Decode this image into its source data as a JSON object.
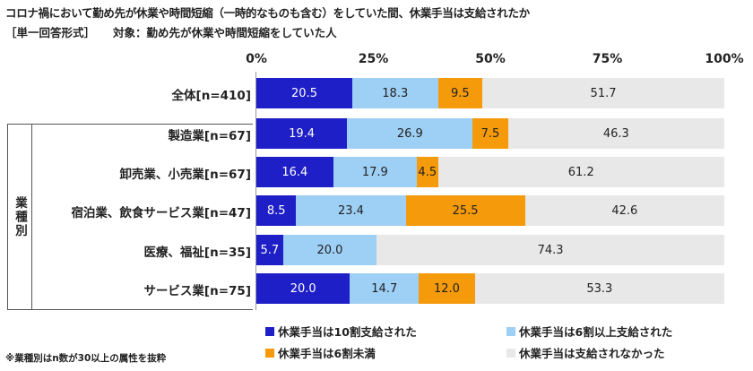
{
  "title": "コロナ禍において勤め先が休業や時間短縮（一時的なものも含む）をしていた間、休業手当は支給されたか",
  "subtitle": "［単一回答形式］",
  "target": "対象：勤め先が休業や時間短縮をしていた人",
  "group_label": "業種別",
  "note": "※業種別はn数が30以上の属性を抜粋",
  "colors": [
    "#1f1fc8",
    "#9ecff5",
    "#f59a0a",
    "#e8e8e8"
  ],
  "chart_data": {
    "type": "bar",
    "orientation": "horizontal",
    "stacked": true,
    "xlim": [
      0,
      100
    ],
    "ticks": [
      "0%",
      "25%",
      "50%",
      "75%",
      "100%"
    ],
    "categories": [
      "全体[n=410]",
      "製造業[n=67]",
      "卸売業、小売業[n=67]",
      "宿泊業、飲食サービス業[n=47]",
      "医療、福祉[n=35]",
      "サービス業[n=75]"
    ],
    "series": [
      {
        "name": "休業手当は10割支給された",
        "values": [
          20.5,
          19.4,
          16.4,
          8.5,
          5.7,
          20.0
        ]
      },
      {
        "name": "休業手当は6割以上支給された",
        "values": [
          18.3,
          26.9,
          17.9,
          23.4,
          20.0,
          14.7
        ]
      },
      {
        "name": "休業手当は6割未満",
        "values": [
          9.5,
          7.5,
          4.5,
          25.5,
          0,
          12.0
        ]
      },
      {
        "name": "休業手当は支給されなかった",
        "values": [
          51.7,
          46.3,
          61.2,
          42.6,
          74.3,
          53.3
        ]
      }
    ],
    "value_labels": [
      [
        "20.5",
        "18.3",
        "9.5",
        "51.7"
      ],
      [
        "19.4",
        "26.9",
        "7.5",
        "46.3"
      ],
      [
        "16.4",
        "17.9",
        "4.5",
        "61.2"
      ],
      [
        "8.5",
        "23.4",
        "25.5",
        "42.6"
      ],
      [
        "5.7",
        "20.0",
        "",
        "74.3"
      ],
      [
        "20.0",
        "14.7",
        "12.0",
        "53.3"
      ]
    ]
  }
}
